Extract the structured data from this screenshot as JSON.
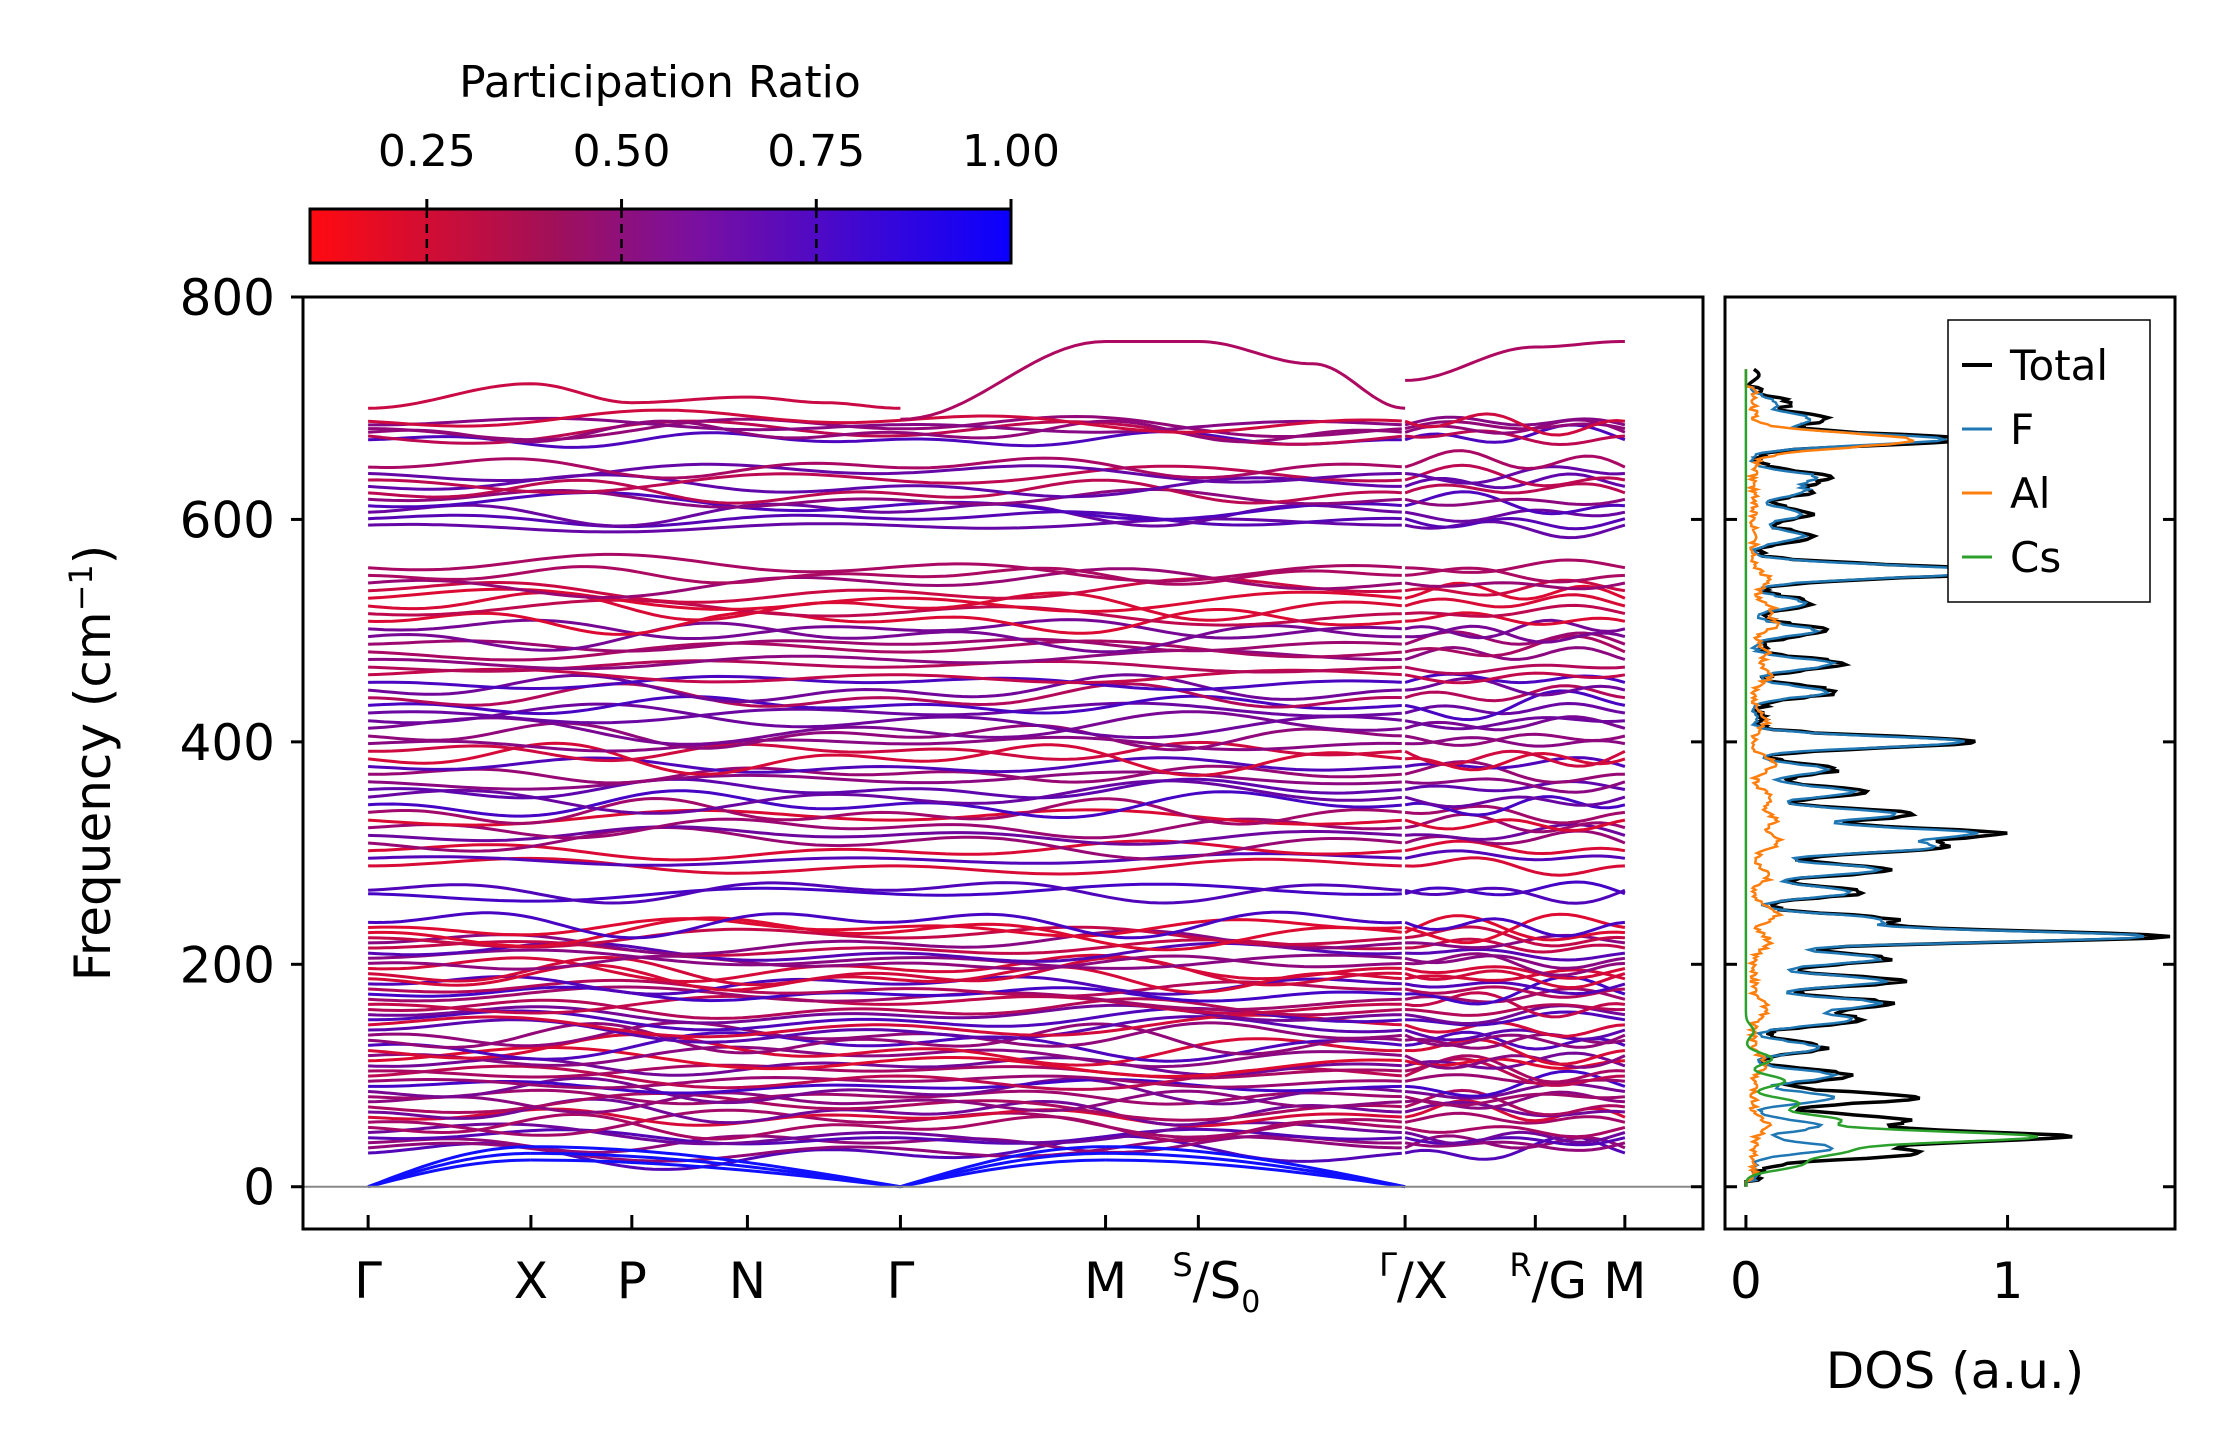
{
  "colorbar": {
    "title": "Participation Ratio",
    "tick_labels": [
      "0.25",
      "0.50",
      "0.75",
      "1.00"
    ],
    "range": [
      0.1,
      1.0
    ],
    "colors": {
      "low": "#ff0a10",
      "high": "#0a00ff"
    }
  },
  "chart_data": [
    {
      "type": "line",
      "name": "phonon-dispersion",
      "ylabel": "Frequency (cm⁻¹)",
      "ylabel_text": "Frequency (cm",
      "ylabel_sup": "−1",
      "ylabel_close": ")",
      "ylim": [
        -38,
        800
      ],
      "yticks": [
        0,
        200,
        400,
        600,
        800
      ],
      "ytick_labels": [
        "0",
        "200",
        "400",
        "600",
        "800"
      ],
      "kpath": [
        {
          "label": "Γ",
          "x": 0.0
        },
        {
          "label": "X",
          "x": 1.0
        },
        {
          "label": "P",
          "x": 1.62
        },
        {
          "label": "N",
          "x": 2.33
        },
        {
          "label": "Γ",
          "x": 3.27
        },
        {
          "label": "M",
          "x": 4.53
        },
        {
          "label": "S/S₀",
          "sup": "S",
          "base": "S",
          "sub": "0",
          "x": 5.1
        },
        {
          "label": "Γ/X",
          "sup": "Γ",
          "base": "X",
          "sub": "",
          "x": 6.37
        },
        {
          "label": "R/G",
          "sup": "R",
          "base": "G",
          "sub": "",
          "x": 7.17
        },
        {
          "label": "M",
          "x": 7.72
        }
      ],
      "xlim": [
        -0.4,
        8.2
      ],
      "acoustic_branches": [
        {
          "segment": "Γ-X",
          "start": 0,
          "end": 28
        },
        {
          "segment": "X-Γ",
          "start": 28,
          "end": 0
        },
        {
          "segment": "Γ-M",
          "start": 0,
          "end": 28
        },
        {
          "segment": "M-Γ",
          "start": 28,
          "end": 0
        }
      ],
      "highlighted_branches": [
        {
          "path": "Γ-X-P-N-Γ",
          "values": [
            700,
            722,
            705,
            710,
            705,
            700
          ],
          "participation": 0.3
        },
        {
          "path": "Γ-M-S-Γ",
          "values": [
            690,
            760,
            760,
            740,
            700
          ],
          "participation": 0.4
        },
        {
          "path": "X-R-M",
          "values": [
            725,
            755,
            760
          ],
          "participation": 0.4
        }
      ],
      "band_note": "Optical branches span roughly 28-700 cm-1, dense clusters near 30-240, 280-560, 590-700 cm-1"
    },
    {
      "type": "line",
      "name": "density-of-states",
      "xlabel": "DOS (a.u.)",
      "xlim": [
        -0.08,
        1.64
      ],
      "xticks": [
        0,
        1
      ],
      "xtick_labels": [
        "0",
        "1"
      ],
      "ylim": [
        -38,
        800
      ],
      "legend_position": "top-right",
      "series": [
        {
          "name": "Total",
          "color": "#000000",
          "peaks": [
            [
              30,
              0.6
            ],
            [
              45,
              1.17
            ],
            [
              60,
              0.55
            ],
            [
              80,
              0.6
            ],
            [
              100,
              0.35
            ],
            [
              125,
              0.25
            ],
            [
              150,
              0.4
            ],
            [
              165,
              0.5
            ],
            [
              185,
              0.55
            ],
            [
              205,
              0.5
            ],
            [
              225,
              1.55
            ],
            [
              240,
              0.5
            ],
            [
              265,
              0.4
            ],
            [
              285,
              0.5
            ],
            [
              305,
              0.7
            ],
            [
              318,
              0.9
            ],
            [
              335,
              0.6
            ],
            [
              355,
              0.4
            ],
            [
              375,
              0.3
            ],
            [
              400,
              0.85
            ],
            [
              445,
              0.3
            ],
            [
              470,
              0.33
            ],
            [
              500,
              0.25
            ],
            [
              525,
              0.2
            ],
            [
              550,
              0.4
            ],
            [
              555,
              0.65
            ],
            [
              585,
              0.2
            ],
            [
              605,
              0.2
            ],
            [
              625,
              0.2
            ],
            [
              638,
              0.25
            ],
            [
              672,
              0.78
            ],
            [
              690,
              0.25
            ],
            [
              705,
              0.1
            ],
            [
              730,
              0.05
            ]
          ],
          "background": 0.05,
          "width": 5
        },
        {
          "name": "F",
          "color": "#1f77b4",
          "peaks": [
            [
              35,
              0.3
            ],
            [
              55,
              0.25
            ],
            [
              80,
              0.3
            ],
            [
              100,
              0.3
            ],
            [
              125,
              0.25
            ],
            [
              150,
              0.38
            ],
            [
              165,
              0.48
            ],
            [
              185,
              0.5
            ],
            [
              205,
              0.48
            ],
            [
              225,
              1.5
            ],
            [
              240,
              0.48
            ],
            [
              265,
              0.38
            ],
            [
              285,
              0.48
            ],
            [
              305,
              0.67
            ],
            [
              318,
              0.82
            ],
            [
              335,
              0.55
            ],
            [
              355,
              0.38
            ],
            [
              375,
              0.28
            ],
            [
              400,
              0.8
            ],
            [
              445,
              0.28
            ],
            [
              470,
              0.3
            ],
            [
              500,
              0.23
            ],
            [
              525,
              0.19
            ],
            [
              550,
              0.38
            ],
            [
              555,
              0.62
            ],
            [
              585,
              0.19
            ],
            [
              605,
              0.19
            ],
            [
              625,
              0.19
            ],
            [
              638,
              0.24
            ],
            [
              672,
              0.72
            ],
            [
              690,
              0.22
            ],
            [
              705,
              0.08
            ]
          ],
          "background": 0.03,
          "width": 5
        },
        {
          "name": "Al",
          "color": "#ff7f0e",
          "peaks": [
            [
              55,
              0.05
            ],
            [
              110,
              0.05
            ],
            [
              160,
              0.05
            ],
            [
              220,
              0.06
            ],
            [
              245,
              0.09
            ],
            [
              280,
              0.06
            ],
            [
              310,
              0.1
            ],
            [
              330,
              0.08
            ],
            [
              350,
              0.07
            ],
            [
              380,
              0.08
            ],
            [
              420,
              0.05
            ],
            [
              460,
              0.06
            ],
            [
              480,
              0.05
            ],
            [
              505,
              0.08
            ],
            [
              520,
              0.07
            ],
            [
              545,
              0.06
            ],
            [
              665,
              0.1
            ],
            [
              672,
              0.55
            ]
          ],
          "background": 0.03,
          "width": 6
        },
        {
          "name": "Cs",
          "color": "#2ca02c",
          "peaks": [
            [
              20,
              0.2
            ],
            [
              32,
              0.35
            ],
            [
              45,
              1.1
            ],
            [
              60,
              0.35
            ],
            [
              75,
              0.2
            ],
            [
              95,
              0.15
            ],
            [
              115,
              0.1
            ],
            [
              140,
              0.03
            ]
          ],
          "background": 0.0,
          "width": 5
        }
      ]
    }
  ]
}
